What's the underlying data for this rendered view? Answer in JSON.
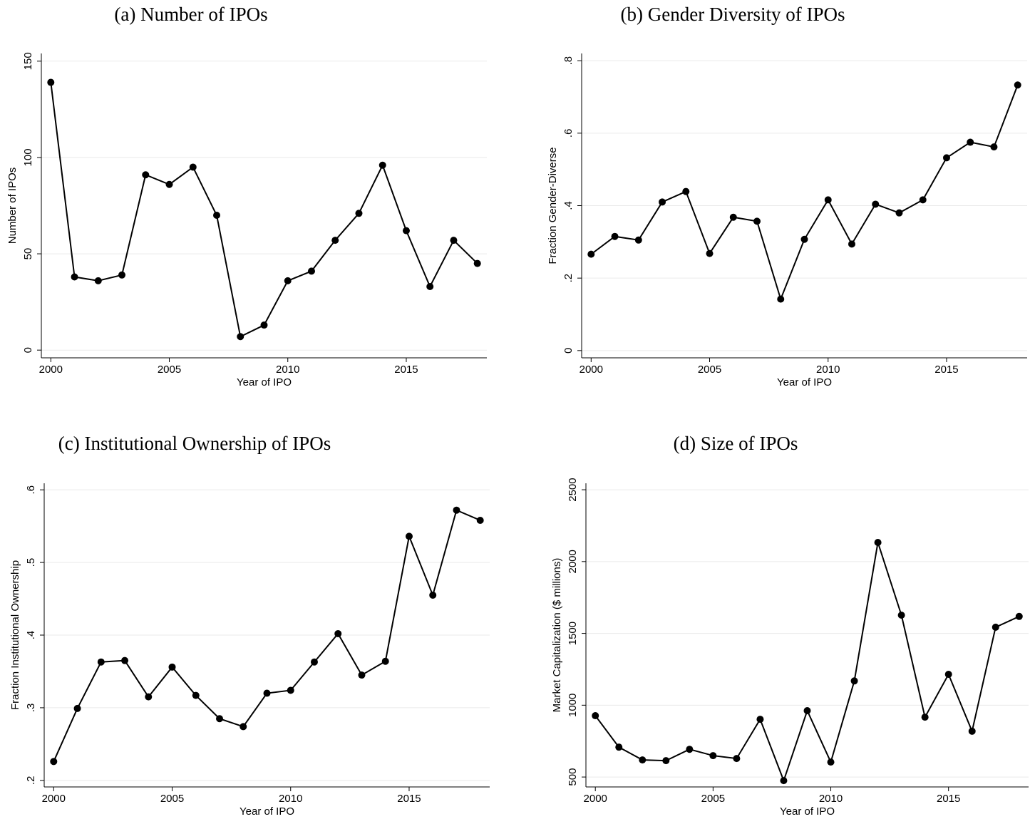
{
  "chart_data": [
    {
      "type": "line",
      "title": "(a) Number of IPOs",
      "x_label": "Year of IPO",
      "y_label": "Number of IPOs",
      "x": [
        2000,
        2001,
        2002,
        2003,
        2004,
        2005,
        2006,
        2007,
        2008,
        2009,
        2010,
        2011,
        2012,
        2013,
        2014,
        2015,
        2016,
        2017,
        2018
      ],
      "values": [
        139,
        38,
        36,
        39,
        91,
        86,
        95,
        70,
        7,
        13,
        36,
        41,
        57,
        71,
        96,
        62,
        33,
        57,
        45
      ],
      "color": "#000000",
      "xlim": [
        1999.6,
        2018.4
      ],
      "xticks": [
        2000,
        2005,
        2010,
        2015
      ],
      "ylim": [
        -4,
        154
      ],
      "yticks": [
        0,
        50,
        100,
        150
      ],
      "grid": true
    },
    {
      "type": "line",
      "title": "(b) Gender Diversity of IPOs",
      "x_label": "Year of IPO",
      "y_label": "Fraction Gender-Diverse",
      "x": [
        2000,
        2001,
        2002,
        2003,
        2004,
        2005,
        2006,
        2007,
        2008,
        2009,
        2010,
        2011,
        2012,
        2013,
        2014,
        2015,
        2016,
        2017,
        2018
      ],
      "values": [
        0.266,
        0.315,
        0.305,
        0.41,
        0.439,
        0.268,
        0.368,
        0.357,
        0.142,
        0.307,
        0.416,
        0.294,
        0.404,
        0.38,
        0.416,
        0.532,
        0.575,
        0.562,
        0.733
      ],
      "color": "#000000",
      "xlim": [
        1999.6,
        2018.4
      ],
      "xticks": [
        2000,
        2005,
        2010,
        2015
      ],
      "ylim": [
        -0.02,
        0.82
      ],
      "yticks": [
        0,
        {
          "value": 0.2,
          "label": ".2"
        },
        {
          "value": 0.4,
          "label": ".4"
        },
        {
          "value": 0.6,
          "label": ".6"
        },
        {
          "value": 0.8,
          "label": ".8"
        }
      ],
      "grid": true
    },
    {
      "type": "line",
      "title": "(c) Institutional Ownership of IPOs",
      "x_label": "Year of IPO",
      "y_label": "Fraction Institutional Ownership",
      "x": [
        2000,
        2001,
        2002,
        2003,
        2004,
        2005,
        2006,
        2007,
        2008,
        2009,
        2010,
        2011,
        2012,
        2013,
        2014,
        2015,
        2016,
        2017,
        2018
      ],
      "values": [
        0.226,
        0.299,
        0.363,
        0.365,
        0.315,
        0.356,
        0.317,
        0.285,
        0.274,
        0.32,
        0.324,
        0.363,
        0.402,
        0.345,
        0.364,
        0.536,
        0.455,
        0.572,
        0.558
      ],
      "color": "#000000",
      "xlim": [
        1999.6,
        2018.4
      ],
      "xticks": [
        2000,
        2005,
        2010,
        2015
      ],
      "ylim": [
        0.191,
        0.609
      ],
      "yticks": [
        {
          "value": 0.2,
          "label": ".2"
        },
        {
          "value": 0.3,
          "label": ".3"
        },
        {
          "value": 0.4,
          "label": ".4"
        },
        {
          "value": 0.5,
          "label": ".5"
        },
        {
          "value": 0.6,
          "label": ".6"
        }
      ],
      "grid": true
    },
    {
      "type": "line",
      "title": "(d) Size of IPOs",
      "x_label": "Year of IPO",
      "y_label": "Market Capitalization ($ millions)",
      "x": [
        2000,
        2001,
        2002,
        2003,
        2004,
        2005,
        2006,
        2007,
        2008,
        2009,
        2010,
        2011,
        2012,
        2013,
        2014,
        2015,
        2016,
        2017,
        2018
      ],
      "values": [
        927,
        708,
        619,
        614,
        693,
        649,
        629,
        902,
        475,
        962,
        604,
        1169,
        2133,
        1627,
        917,
        1215,
        819,
        1543,
        1618
      ],
      "color": "#000000",
      "xlim": [
        1999.6,
        2018.4
      ],
      "xticks": [
        2000,
        2005,
        2010,
        2015
      ],
      "ylim": [
        431,
        2545
      ],
      "yticks": [
        500,
        1000,
        1500,
        2000,
        2500
      ],
      "grid": true
    }
  ]
}
